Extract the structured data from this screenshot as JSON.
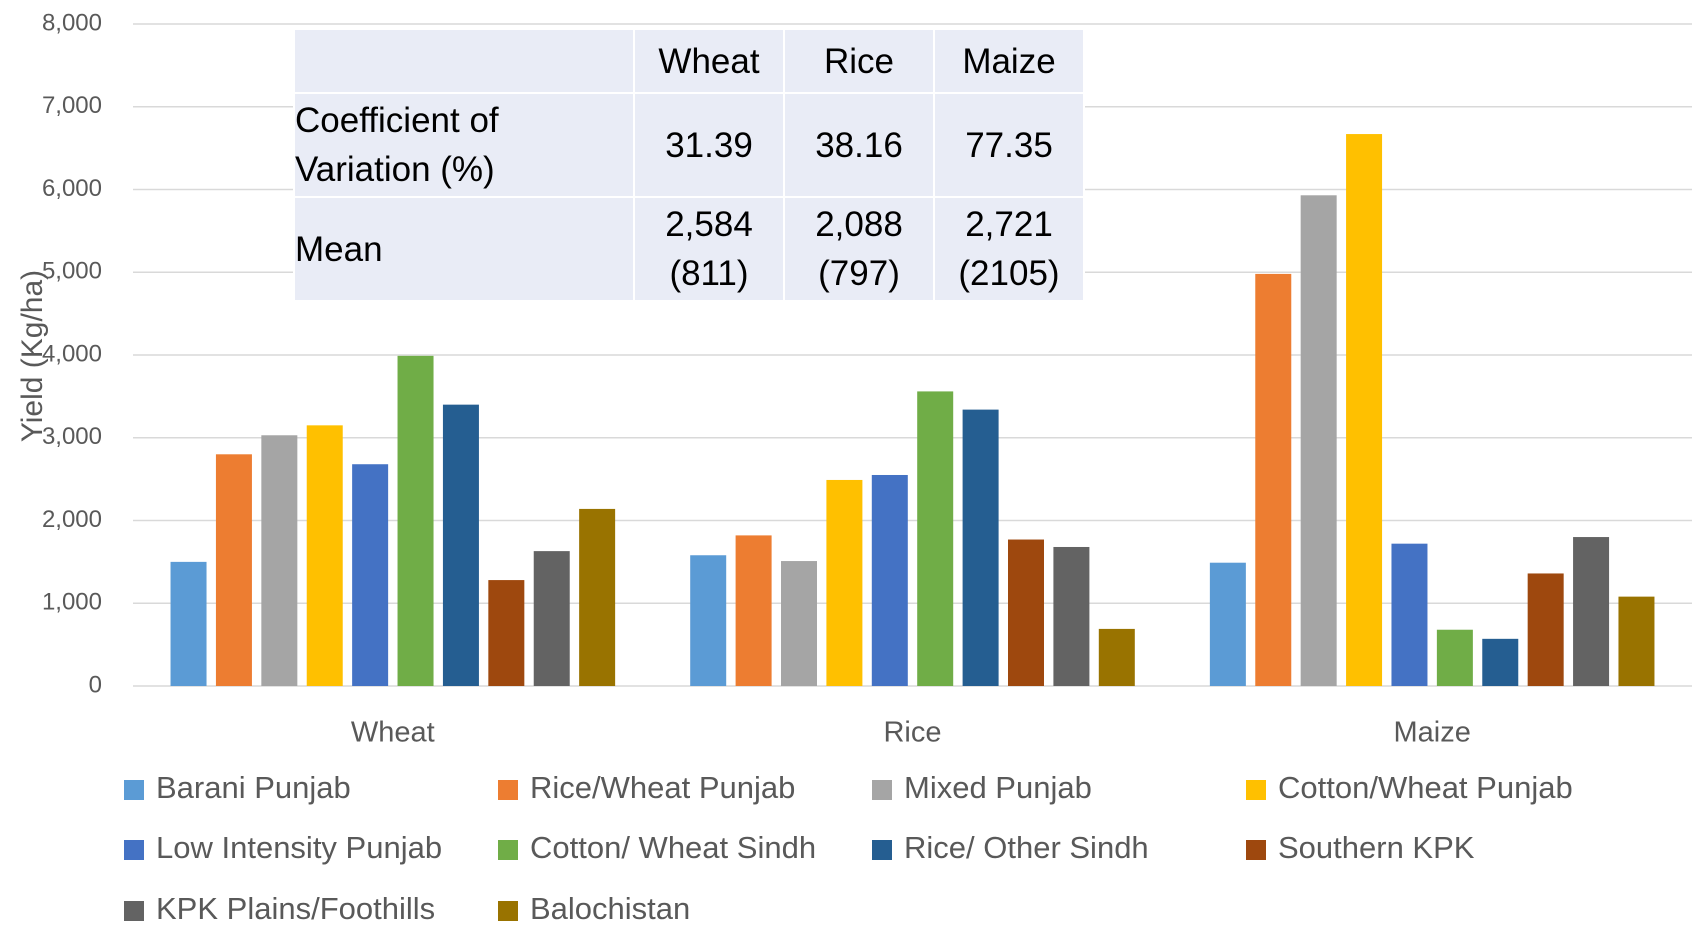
{
  "chart_data": {
    "type": "bar",
    "categories": [
      "Wheat",
      "Rice",
      "Maize"
    ],
    "y_label": "Yield (Kg/ha)",
    "ylim": [
      0,
      8000
    ],
    "yticks": [
      0,
      {
        "value": 1000,
        "label": "1,000"
      },
      {
        "value": 2000,
        "label": "2,000"
      },
      {
        "value": 3000,
        "label": "3,000"
      },
      {
        "value": 4000,
        "label": "4,000"
      },
      {
        "value": 5000,
        "label": "5,000"
      },
      {
        "value": 6000,
        "label": "6,000"
      },
      {
        "value": 7000,
        "label": "7,000"
      },
      {
        "value": 8000,
        "label": "8,000"
      }
    ],
    "grid": true,
    "legend": "bottom",
    "series": [
      {
        "name": "Barani Punjab",
        "color": "#5b9bd5",
        "values": [
          1500,
          1580,
          1490
        ]
      },
      {
        "name": "Rice/Wheat Punjab",
        "color": "#ed7d31",
        "values": [
          2800,
          1820,
          4980
        ]
      },
      {
        "name": "Mixed Punjab",
        "color": "#a5a5a5",
        "values": [
          3030,
          1510,
          5930
        ]
      },
      {
        "name": "Cotton/Wheat Punjab",
        "color": "#ffc000",
        "values": [
          3150,
          2490,
          6670
        ]
      },
      {
        "name": "Low Intensity Punjab",
        "color": "#4472c4",
        "values": [
          2680,
          2550,
          1720
        ]
      },
      {
        "name": "Cotton/ Wheat Sindh",
        "color": "#70ad47",
        "values": [
          3990,
          3560,
          680
        ]
      },
      {
        "name": "Rice/ Other Sindh",
        "color": "#255e91",
        "values": [
          3400,
          3340,
          570
        ]
      },
      {
        "name": "Southern KPK",
        "color": "#9e480e",
        "values": [
          1280,
          1770,
          1360
        ]
      },
      {
        "name": "KPK Plains/Foothills",
        "color": "#636363",
        "values": [
          1630,
          1680,
          1800
        ]
      },
      {
        "name": "Balochistan",
        "color": "#997300",
        "values": [
          2140,
          690,
          1080
        ]
      }
    ]
  },
  "table": {
    "header": [
      "Wheat",
      "Rice",
      "Maize"
    ],
    "rows": [
      {
        "label": "Coefficient of Variation (%)",
        "cells": [
          "31.39",
          "38.16",
          "77.35"
        ]
      },
      {
        "label": "Mean",
        "cells": [
          "2,584\n(811)",
          "2,088\n(797)",
          "2,721\n(2105)"
        ]
      }
    ]
  }
}
